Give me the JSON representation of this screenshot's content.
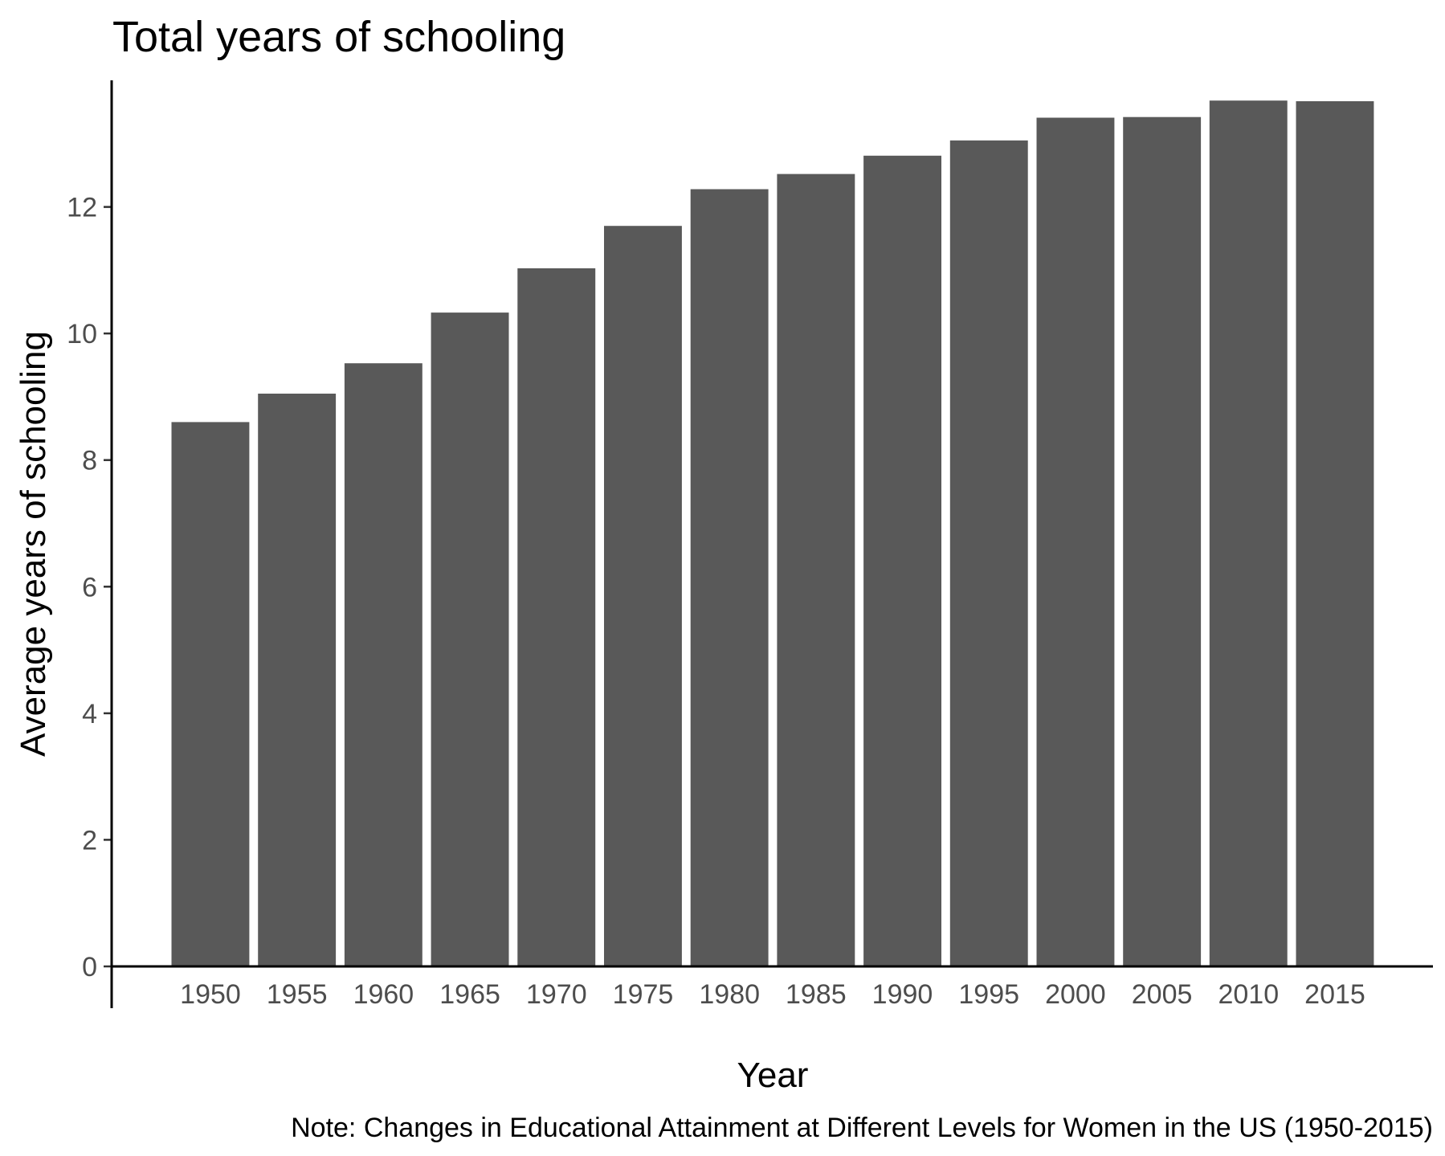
{
  "chart_data": {
    "type": "bar",
    "title": "Total years of schooling",
    "xlabel": "Year",
    "ylabel": "Average years of schooling",
    "caption": "Note: Changes in Educational Attainment at Different Levels for Women in the US (1950-2015)",
    "categories": [
      "1950",
      "1955",
      "1960",
      "1965",
      "1970",
      "1975",
      "1980",
      "1985",
      "1990",
      "1995",
      "2000",
      "2005",
      "2010",
      "2015"
    ],
    "values": [
      8.6,
      9.05,
      9.53,
      10.33,
      11.03,
      11.7,
      12.28,
      12.52,
      12.81,
      13.05,
      13.41,
      13.42,
      13.68,
      13.67
    ],
    "ylim": [
      0,
      14
    ],
    "yticks": [
      0,
      2,
      4,
      6,
      8,
      10,
      12
    ],
    "grid": false,
    "legend": "none",
    "colors": {
      "bar": "#595959",
      "axis": "#000000",
      "tick_label": "#4d4d4d"
    }
  }
}
